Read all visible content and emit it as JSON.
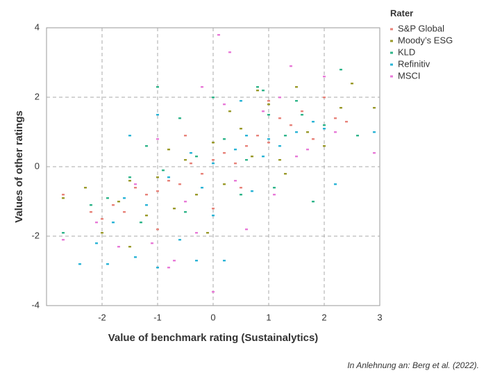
{
  "chart_data": {
    "type": "scatter",
    "xlabel": "Value of benchmark rating (Sustainalytics)",
    "ylabel": "Values of other ratings",
    "legend_title": "Rater",
    "legend": "right",
    "source": "In Anlehnung an: Berg et al. (2022).",
    "xlim": [
      -3,
      3
    ],
    "xticks": [
      -2,
      -1,
      0,
      1,
      2,
      3
    ],
    "ylim": [
      -4,
      4
    ],
    "yticks": [
      -4,
      -2,
      0,
      2,
      4
    ],
    "grid": true,
    "series": [
      {
        "name": "S&P Global",
        "color": "#e8837a",
        "x": [
          -2.7,
          -2.2,
          -2,
          -1.8,
          -1.6,
          -1.4,
          -1.2,
          -1,
          -0.8,
          -0.6,
          -0.4,
          -0.2,
          0,
          0.2,
          0.4,
          0.6,
          0.8,
          1,
          1.2,
          1.4,
          1.6,
          1.8,
          2,
          2.2,
          2.4,
          -1,
          0,
          1,
          0.5,
          -0.5
        ],
        "values": [
          -0.8,
          -1.3,
          -1.5,
          -1.1,
          -1.3,
          -0.6,
          -0.8,
          -0.7,
          -0.4,
          -0.5,
          0.1,
          -0.2,
          0.2,
          0.4,
          0.1,
          0.6,
          0.9,
          0.7,
          1.4,
          1.2,
          1.6,
          0.8,
          2.0,
          1.4,
          1.3,
          -1.8,
          -1.2,
          1.9,
          -0.6,
          0.9
        ]
      },
      {
        "name": "Moody’s ESG",
        "color": "#9a9a2a",
        "x": [
          -2.7,
          -2.3,
          -2,
          -1.7,
          -1.5,
          -1.2,
          -1,
          -0.8,
          -0.5,
          -0.3,
          0,
          0.2,
          0.5,
          0.7,
          1,
          1.2,
          1.5,
          1.7,
          2,
          2.3,
          2.5,
          -1.5,
          0.3,
          1.3,
          -0.7,
          2.9,
          0.8,
          -0.1
        ],
        "values": [
          -0.9,
          -0.6,
          -1.9,
          -1.0,
          -0.4,
          -1.4,
          -0.3,
          0.5,
          0.2,
          -0.8,
          0.7,
          -0.5,
          1.1,
          0.3,
          1.8,
          0.2,
          2.3,
          1.0,
          0.6,
          1.7,
          2.4,
          -2.3,
          1.6,
          -0.2,
          -1.2,
          1.7,
          2.2,
          -1.9
        ]
      },
      {
        "name": "KLD",
        "color": "#2fb58a",
        "x": [
          -2.7,
          -2.2,
          -1.9,
          -1.5,
          -1.3,
          -1,
          -0.9,
          -0.6,
          -0.3,
          0,
          0.2,
          0.5,
          0.8,
          1,
          1.3,
          1.5,
          1.8,
          2,
          2.3,
          -0.5,
          0.6,
          1.6,
          -1.2,
          0.9,
          2.6,
          1.1
        ],
        "values": [
          -1.9,
          -1.1,
          -0.9,
          -0.3,
          -1.6,
          2.3,
          -0.1,
          1.4,
          0.3,
          2.0,
          0.8,
          -0.8,
          2.3,
          1.5,
          0.9,
          1.9,
          -1.0,
          1.2,
          2.8,
          -1.3,
          0.2,
          1.5,
          0.6,
          2.2,
          0.9,
          -0.6
        ]
      },
      {
        "name": "Refinitiv",
        "color": "#2ab4d6",
        "x": [
          -2.4,
          -2.1,
          -1.8,
          -1.6,
          -1.4,
          -1.2,
          -1,
          -0.8,
          -0.6,
          -0.4,
          -0.2,
          0,
          0.2,
          0.4,
          0.6,
          0.9,
          1.2,
          1.5,
          1.8,
          2,
          2.2,
          2.9,
          -1.9,
          -1,
          0,
          0.5,
          1,
          -0.3,
          -1.5,
          0.7
        ],
        "values": [
          -2.8,
          -2.2,
          -1.6,
          -0.9,
          -2.6,
          -1.1,
          -2.9,
          -0.3,
          -2.1,
          0.4,
          -0.6,
          0.1,
          -2.7,
          0.5,
          0.9,
          0.3,
          0.6,
          1.0,
          1.3,
          1.1,
          -0.5,
          1.0,
          -2.8,
          1.5,
          -1.4,
          1.9,
          0.8,
          -2.7,
          0.9,
          -0.7
        ]
      },
      {
        "name": "MSCI",
        "color": "#e87ad8",
        "x": [
          -2.7,
          -2.1,
          -1.7,
          -1.4,
          -1.1,
          -0.8,
          -0.5,
          -0.2,
          0,
          0.1,
          0.3,
          0.6,
          0.9,
          1.1,
          1.4,
          1.7,
          2,
          2.2,
          2.9,
          -1,
          0.4,
          1.2,
          -0.7,
          0.2,
          1.5,
          -0.3
        ],
        "values": [
          -2.1,
          -1.6,
          -2.3,
          -0.5,
          -2.2,
          -2.9,
          -1.0,
          2.3,
          -3.6,
          3.8,
          3.3,
          -1.8,
          1.6,
          -0.8,
          2.9,
          0.5,
          2.6,
          1.0,
          0.4,
          0.8,
          -0.4,
          2.0,
          -2.7,
          1.8,
          0.3,
          -1.9
        ]
      }
    ]
  }
}
